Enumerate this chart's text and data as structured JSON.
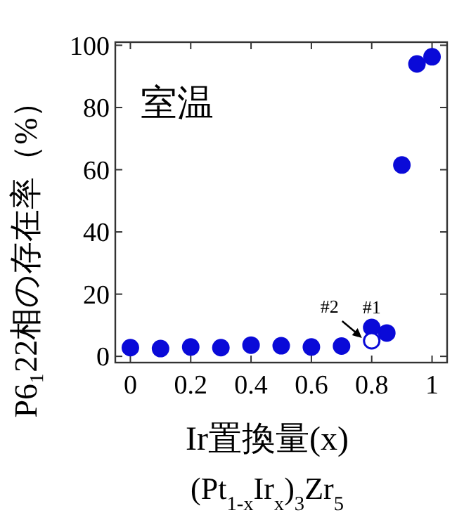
{
  "chart_data": {
    "type": "scatter",
    "xlabel": "Ir置換量(x)",
    "ylabel": "P6₁22相の存在率（%）",
    "xlim": [
      -0.05,
      1.05
    ],
    "ylim": [
      -2,
      101
    ],
    "xticks": [
      0,
      0.2,
      0.4,
      0.6,
      0.8,
      1
    ],
    "yticks": [
      0,
      20,
      40,
      60,
      80,
      100
    ],
    "grid": false,
    "marker": "circle",
    "series": [
      {
        "color": "#0a0ad8",
        "x": [
          0,
          0.1,
          0.2,
          0.3,
          0.4,
          0.5,
          0.6,
          0.7,
          0.8,
          0.85,
          0.9,
          0.95,
          1
        ],
        "values": [
          2.8,
          2.5,
          3,
          2.8,
          3.6,
          3.4,
          3,
          3.3,
          9.3,
          7.5,
          61.5,
          94,
          96.3
        ]
      },
      {
        "color": "#0a0ad8",
        "x": [
          0.8
        ],
        "values": [
          5
        ]
      }
    ],
    "annotations": [
      "室温",
      {
        "text": "#2",
        "x": 0.8,
        "y": 5
      },
      {
        "text": "#1",
        "x": 0.8,
        "y": 9.3
      },
      "(Pt$_{1-x}$Ir$_{x}$)$_{3}$Zr$_{5}$"
    ]
  }
}
